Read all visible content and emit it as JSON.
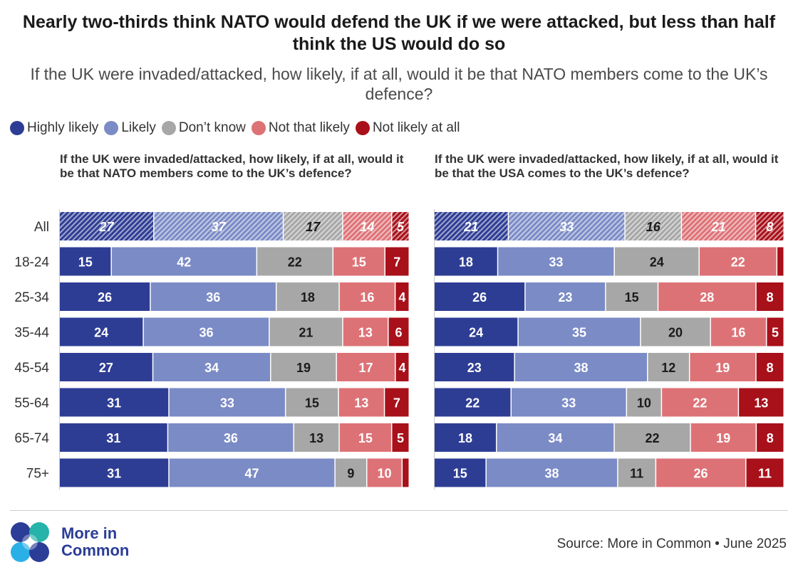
{
  "title": "Nearly two-thirds think NATO would defend the UK if we were attacked, but less than half think the US would do so",
  "subtitle": "If the UK were invaded/attacked, how likely, if at all, would it be that NATO members come to the UK’s defence?",
  "legend": [
    {
      "label": "Highly likely",
      "color": "#2e3d94"
    },
    {
      "label": "Likely",
      "color": "#7b8bc6"
    },
    {
      "label": "Don’t know",
      "color": "#a7a7a7"
    },
    {
      "label": "Not that likely",
      "color": "#dd7276"
    },
    {
      "label": "Not likely at all",
      "color": "#a8101a"
    }
  ],
  "chart_data": [
    {
      "type": "bar",
      "stacked": true,
      "orientation": "horizontal",
      "title": "If the UK were invaded/attacked, how likely, if at all, would it be that NATO members come to the UK’s defence?",
      "categories": [
        "All",
        "18-24",
        "25-34",
        "35-44",
        "45-54",
        "55-64",
        "65-74",
        "75+"
      ],
      "hatched_category": "All",
      "series": [
        {
          "name": "Highly likely",
          "values": [
            27,
            15,
            26,
            24,
            27,
            31,
            31,
            31
          ]
        },
        {
          "name": "Likely",
          "values": [
            37,
            42,
            36,
            36,
            34,
            33,
            36,
            47
          ]
        },
        {
          "name": "Don’t know",
          "values": [
            17,
            22,
            18,
            21,
            19,
            15,
            13,
            9
          ]
        },
        {
          "name": "Not that likely",
          "values": [
            14,
            15,
            16,
            13,
            17,
            13,
            15,
            10
          ]
        },
        {
          "name": "Not likely at all",
          "values": [
            5,
            7,
            4,
            6,
            4,
            7,
            5,
            2
          ]
        }
      ],
      "labels": [
        [
          "27",
          "37",
          "17",
          "14",
          "5"
        ],
        [
          "15",
          "42",
          "22",
          "15",
          "7"
        ],
        [
          "26",
          "36",
          "18",
          "16",
          "4"
        ],
        [
          "24",
          "36",
          "21",
          "13",
          "6"
        ],
        [
          "27",
          "34",
          "19",
          "17",
          "4"
        ],
        [
          "31",
          "33",
          "15",
          "13",
          "7"
        ],
        [
          "31",
          "36",
          "13",
          "15",
          "5"
        ],
        [
          "31",
          "47",
          "9",
          "10",
          ""
        ]
      ]
    },
    {
      "type": "bar",
      "stacked": true,
      "orientation": "horizontal",
      "title": "If the UK were invaded/attacked, how likely, if at all, would it be that the USA comes to the UK’s defence?",
      "categories": [
        "All",
        "18-24",
        "25-34",
        "35-44",
        "45-54",
        "55-64",
        "65-74",
        "75+"
      ],
      "hatched_category": "All",
      "series": [
        {
          "name": "Highly likely",
          "values": [
            21,
            18,
            26,
            24,
            23,
            22,
            18,
            15
          ]
        },
        {
          "name": "Likely",
          "values": [
            33,
            33,
            23,
            35,
            38,
            33,
            34,
            38
          ]
        },
        {
          "name": "Don’t know",
          "values": [
            16,
            24,
            15,
            20,
            12,
            10,
            22,
            11
          ]
        },
        {
          "name": "Not that likely",
          "values": [
            21,
            22,
            28,
            16,
            19,
            22,
            19,
            26
          ]
        },
        {
          "name": "Not likely at all",
          "values": [
            8,
            2,
            8,
            5,
            8,
            13,
            8,
            11
          ]
        }
      ],
      "labels": [
        [
          "21",
          "33",
          "16",
          "21",
          "8"
        ],
        [
          "18",
          "33",
          "24",
          "22",
          ""
        ],
        [
          "26",
          "23",
          "15",
          "28",
          "8"
        ],
        [
          "24",
          "35",
          "20",
          "16",
          "5"
        ],
        [
          "23",
          "38",
          "12",
          "19",
          "8"
        ],
        [
          "22",
          "33",
          "10",
          "22",
          "13"
        ],
        [
          "18",
          "34",
          "22",
          "19",
          "8"
        ],
        [
          "15",
          "38",
          "11",
          "26",
          "11"
        ]
      ]
    }
  ],
  "logo": {
    "line1": "More in",
    "line2": "Common"
  },
  "source": "Source: More in Common • June 2025"
}
